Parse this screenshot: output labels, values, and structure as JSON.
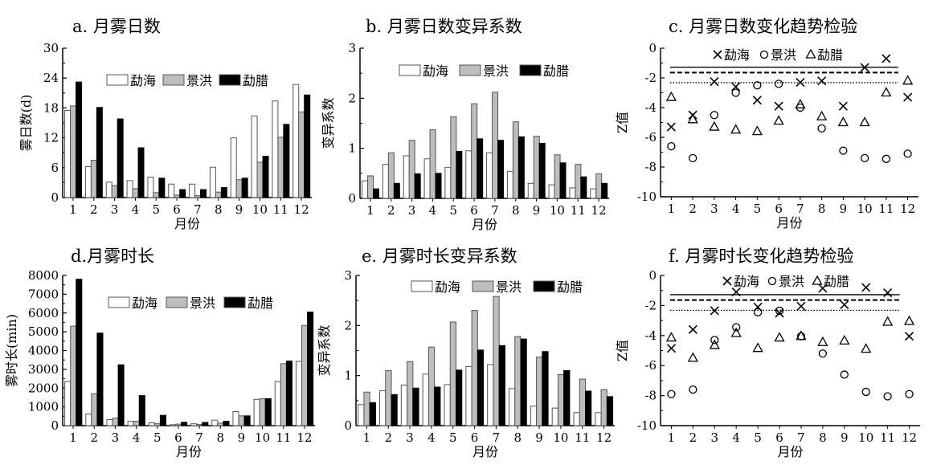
{
  "chart_data": [
    {
      "id": "a",
      "type": "bar",
      "title": "a. 月雾日数",
      "xlabel": "月份",
      "ylabel": "雾日数(d)",
      "categories": [
        "1",
        "2",
        "3",
        "4",
        "5",
        "6",
        "7",
        "8",
        "9",
        "10",
        "11",
        "12"
      ],
      "ylim": [
        0,
        30
      ],
      "yticks": [
        0,
        6,
        12,
        18,
        24,
        30
      ],
      "legend": "top-center",
      "series": [
        {
          "name": "勐海",
          "color": "#ffffff",
          "values": [
            17.5,
            6.2,
            3.1,
            3.4,
            4.1,
            2.7,
            2.7,
            6.1,
            12.0,
            16.4,
            19.4,
            22.7
          ]
        },
        {
          "name": "景洪",
          "color": "#bdbdbd",
          "values": [
            18.4,
            7.5,
            2.4,
            1.8,
            1.0,
            0.5,
            0.4,
            1.1,
            3.6,
            7.1,
            12.1,
            17.2
          ]
        },
        {
          "name": "勐腊",
          "color": "#000000",
          "values": [
            23.2,
            18.1,
            15.8,
            10.0,
            3.9,
            1.6,
            1.6,
            2.0,
            3.9,
            8.3,
            14.7,
            20.6
          ]
        }
      ]
    },
    {
      "id": "b",
      "type": "bar",
      "title": "b. 月雾日数变异系数",
      "xlabel": "月份",
      "ylabel": "变异系数",
      "categories": [
        "1",
        "2",
        "3",
        "4",
        "5",
        "6",
        "7",
        "8",
        "9",
        "10",
        "11",
        "12"
      ],
      "ylim": [
        0,
        3
      ],
      "yticks": [
        0,
        1,
        2,
        3
      ],
      "legend": "top-center",
      "series": [
        {
          "name": "勐海",
          "color": "#ffffff",
          "values": [
            0.35,
            0.68,
            0.85,
            0.79,
            0.62,
            0.95,
            0.91,
            0.54,
            0.3,
            0.27,
            0.21,
            0.19
          ]
        },
        {
          "name": "景洪",
          "color": "#bdbdbd",
          "values": [
            0.45,
            0.91,
            1.16,
            1.37,
            1.63,
            1.89,
            2.12,
            1.53,
            1.24,
            0.87,
            0.68,
            0.49
          ]
        },
        {
          "name": "勐腊",
          "color": "#000000",
          "values": [
            0.19,
            0.3,
            0.49,
            0.5,
            0.94,
            1.19,
            1.16,
            1.23,
            1.1,
            0.71,
            0.43,
            0.3
          ]
        }
      ]
    },
    {
      "id": "c",
      "type": "scatter",
      "title": "c. 月雾日数变化趋势检验",
      "xlabel": "月份",
      "ylabel": "Z值",
      "categories": [
        "1",
        "2",
        "3",
        "4",
        "5",
        "6",
        "7",
        "8",
        "9",
        "10",
        "11",
        "12"
      ],
      "ylim": [
        -10,
        0
      ],
      "yticks": [
        0,
        -2,
        -4,
        -6,
        -8,
        -10
      ],
      "legend": "top-center",
      "reference_lines": [
        {
          "value": -1.28,
          "style": "solid"
        },
        {
          "value": -1.64,
          "style": "dashed"
        },
        {
          "value": -2.32,
          "style": "dotted"
        }
      ],
      "series": [
        {
          "name": "勐海",
          "marker": "x",
          "values": [
            -5.3,
            -4.5,
            -2.25,
            -2.6,
            -3.5,
            -3.9,
            -2.3,
            -2.2,
            -3.9,
            -1.3,
            -0.7,
            -3.3
          ]
        },
        {
          "name": "景洪",
          "marker": "circle",
          "values": [
            -6.6,
            -7.4,
            -4.5,
            -3.0,
            -2.5,
            -2.4,
            -4.0,
            -5.4,
            -6.9,
            -7.4,
            -7.45,
            -7.1
          ]
        },
        {
          "name": "勐腊",
          "marker": "triangle",
          "values": [
            -3.3,
            -4.8,
            -5.3,
            -5.5,
            -5.6,
            -4.9,
            -3.8,
            -4.6,
            -5.0,
            -5.0,
            -3.0,
            -2.2
          ]
        }
      ]
    },
    {
      "id": "d",
      "type": "bar",
      "title": "d.月雾时长",
      "xlabel": "月份",
      "ylabel": "雾时长(min)",
      "categories": [
        "1",
        "2",
        "3",
        "4",
        "5",
        "6",
        "7",
        "8",
        "9",
        "10",
        "11",
        "12"
      ],
      "ylim": [
        0,
        8000
      ],
      "yticks": [
        0,
        1000,
        2000,
        3000,
        4000,
        5000,
        6000,
        7000,
        8000
      ],
      "legend": "top-center",
      "series": [
        {
          "name": "勐海",
          "color": "#ffffff",
          "values": [
            2350,
            620,
            320,
            230,
            150,
            50,
            100,
            290,
            750,
            1400,
            2350,
            3420
          ]
        },
        {
          "name": "景洪",
          "color": "#bdbdbd",
          "values": [
            5300,
            1700,
            400,
            230,
            100,
            80,
            60,
            130,
            520,
            1430,
            3300,
            5340
          ]
        },
        {
          "name": "勐腊",
          "color": "#000000",
          "values": [
            7800,
            4930,
            3240,
            1600,
            550,
            180,
            170,
            230,
            520,
            1440,
            3440,
            6050
          ]
        }
      ]
    },
    {
      "id": "e",
      "type": "bar",
      "title": "e. 月雾时长变异系数",
      "xlabel": "月份",
      "ylabel": "变异系数",
      "categories": [
        "1",
        "2",
        "3",
        "4",
        "5",
        "6",
        "7",
        "8",
        "9",
        "10",
        "11",
        "12"
      ],
      "ylim": [
        0,
        3
      ],
      "yticks": [
        0,
        1,
        2,
        3
      ],
      "legend": "top-center",
      "series": [
        {
          "name": "勐海",
          "color": "#ffffff",
          "values": [
            0.42,
            0.7,
            0.81,
            1.03,
            0.82,
            1.18,
            1.22,
            0.74,
            0.39,
            0.35,
            0.26,
            0.26
          ]
        },
        {
          "name": "景洪",
          "color": "#bdbdbd",
          "values": [
            0.67,
            1.1,
            1.28,
            1.57,
            2.07,
            2.3,
            2.58,
            1.78,
            1.37,
            1.02,
            0.93,
            0.72
          ]
        },
        {
          "name": "勐腊",
          "color": "#000000",
          "values": [
            0.46,
            0.62,
            0.75,
            0.77,
            1.11,
            1.51,
            1.6,
            1.73,
            1.48,
            1.1,
            0.69,
            0.58
          ]
        }
      ]
    },
    {
      "id": "f",
      "type": "scatter",
      "title": "f. 月雾时长变化趋势检验",
      "xlabel": "月份",
      "ylabel": "Z值",
      "categories": [
        "1",
        "2",
        "3",
        "4",
        "5",
        "6",
        "7",
        "8",
        "9",
        "10",
        "11",
        "12"
      ],
      "ylim": [
        -10,
        0
      ],
      "yticks": [
        0,
        -2,
        -4,
        -6,
        -8,
        -10
      ],
      "legend": "top-center",
      "reference_lines": [
        {
          "value": -1.28,
          "style": "solid"
        },
        {
          "value": -1.64,
          "style": "dashed"
        },
        {
          "value": -2.32,
          "style": "dotted"
        }
      ],
      "series": [
        {
          "name": "勐海",
          "marker": "x",
          "values": [
            -4.85,
            -3.6,
            -2.35,
            -1.1,
            -2.1,
            -2.5,
            -2.05,
            -0.85,
            -1.95,
            -0.8,
            -1.15,
            -4.05
          ]
        },
        {
          "name": "景洪",
          "marker": "circle",
          "values": [
            -7.9,
            -7.6,
            -4.3,
            -3.45,
            -2.45,
            -2.35,
            -4.05,
            -5.2,
            -6.6,
            -7.75,
            -8.05,
            -7.9
          ]
        },
        {
          "name": "勐腊",
          "marker": "triangle",
          "values": [
            -4.15,
            -5.5,
            -4.65,
            -3.85,
            -4.85,
            -4.15,
            -4.05,
            -4.45,
            -4.35,
            -4.9,
            -3.1,
            -3.05
          ]
        }
      ]
    }
  ]
}
